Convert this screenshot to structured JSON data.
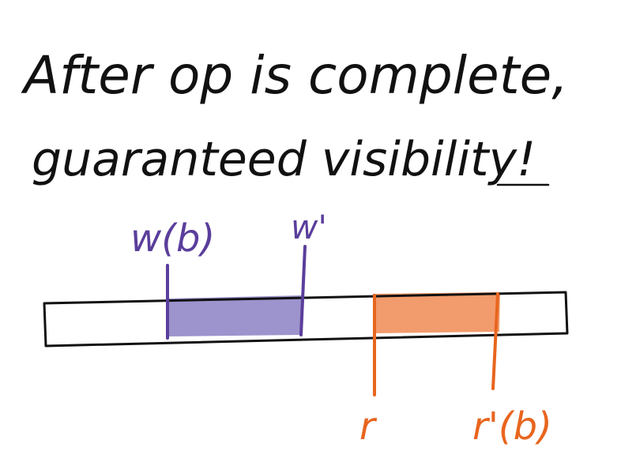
{
  "heading": {
    "line1": "After op is complete,",
    "line2": "guaranteed visibility!"
  },
  "timeline": {
    "write_start_label": "w(b)",
    "write_end_label": "w'",
    "read_start_label": "r",
    "read_end_label": "r'(b)"
  },
  "colors": {
    "ink": "#111111",
    "write": "#5a3e9b",
    "write_fill": "#8c80c4",
    "read": "#e8651e",
    "read_fill": "#f08a52"
  }
}
